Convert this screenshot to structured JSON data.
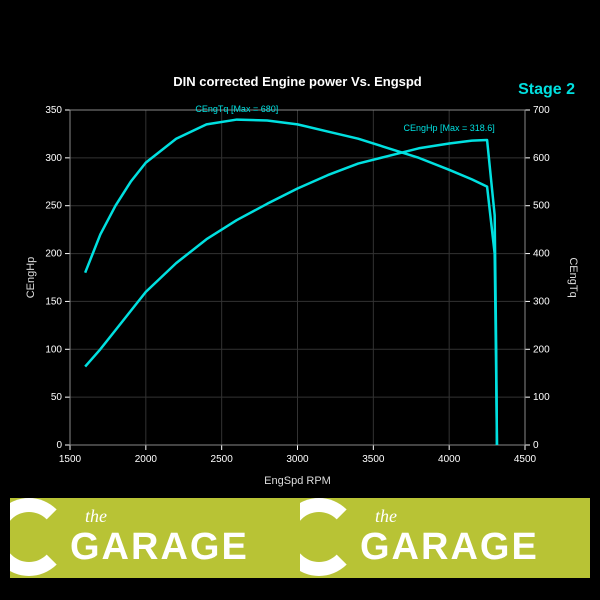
{
  "chart": {
    "type": "line",
    "title": "DIN corrected Engine power Vs. Engspd",
    "stage_label": "Stage 2",
    "background_color": "#000000",
    "plot_background_color": "#000000",
    "grid_color": "#333333",
    "border_color": "#888888",
    "tick_color": "#ffffff",
    "title_color": "#ffffff",
    "title_fontsize": 13,
    "tick_fontsize": 10,
    "axis_label_fontsize": 11,
    "axis_label_color": "#dddddd",
    "stage_color": "#00e0e0",
    "x_axis": {
      "label": "EngSpd RPM",
      "min": 1500,
      "max": 4500,
      "tick_step": 500,
      "ticks": [
        1500,
        2000,
        2500,
        3000,
        3500,
        4000,
        4500
      ]
    },
    "y_left": {
      "label": "CEngHp",
      "min": 0,
      "max": 350,
      "tick_step": 50,
      "ticks": [
        0,
        50,
        100,
        150,
        200,
        250,
        300,
        350
      ]
    },
    "y_right": {
      "label": "CEngTq",
      "min": 0,
      "max": 700,
      "tick_step": 100,
      "ticks": [
        0,
        100,
        200,
        300,
        400,
        500,
        600,
        700
      ]
    },
    "series": [
      {
        "name": "CEngHp",
        "label": "CEngHp [Max = 318.6]",
        "axis": "left",
        "color": "#00e0e0",
        "stroke_width": 2.5,
        "data": [
          [
            1600,
            82
          ],
          [
            1700,
            100
          ],
          [
            1800,
            120
          ],
          [
            1900,
            140
          ],
          [
            2000,
            160
          ],
          [
            2200,
            190
          ],
          [
            2400,
            215
          ],
          [
            2600,
            235
          ],
          [
            2800,
            252
          ],
          [
            3000,
            268
          ],
          [
            3200,
            282
          ],
          [
            3400,
            294
          ],
          [
            3600,
            302
          ],
          [
            3800,
            310
          ],
          [
            4000,
            315
          ],
          [
            4150,
            318
          ],
          [
            4250,
            318.6
          ],
          [
            4300,
            240
          ],
          [
            4310,
            100
          ],
          [
            4315,
            0
          ]
        ]
      },
      {
        "name": "CEngTq",
        "label": "CEngTq [Max = 680]",
        "axis": "right",
        "color": "#00e0e0",
        "stroke_width": 2.5,
        "data": [
          [
            1600,
            360
          ],
          [
            1700,
            440
          ],
          [
            1800,
            500
          ],
          [
            1900,
            550
          ],
          [
            2000,
            590
          ],
          [
            2200,
            640
          ],
          [
            2400,
            670
          ],
          [
            2600,
            680
          ],
          [
            2800,
            678
          ],
          [
            3000,
            670
          ],
          [
            3200,
            655
          ],
          [
            3400,
            640
          ],
          [
            3600,
            620
          ],
          [
            3800,
            600
          ],
          [
            4000,
            575
          ],
          [
            4150,
            555
          ],
          [
            4250,
            540
          ],
          [
            4300,
            400
          ],
          [
            4310,
            150
          ],
          [
            4315,
            0
          ]
        ]
      }
    ]
  },
  "footer": {
    "background_color": "#b8c335",
    "logo_text_small": "the",
    "logo_text_large": "GARAGE",
    "text_color": "#ffffff"
  }
}
